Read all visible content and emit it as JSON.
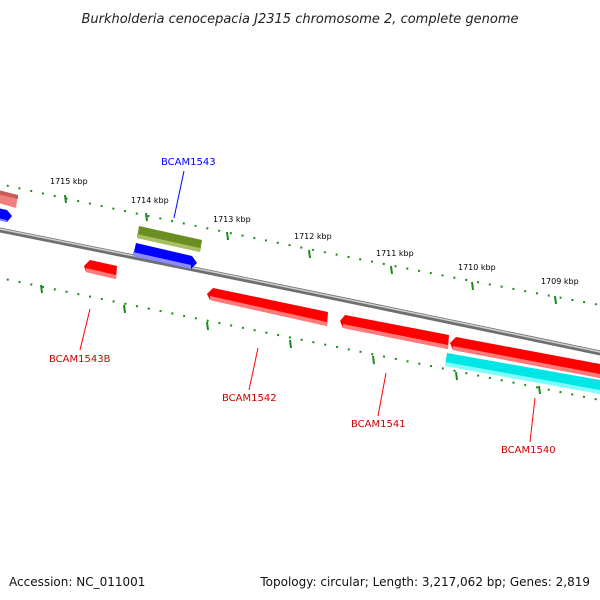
{
  "title": "Burkholderia cenocepacia J2315 chromosome 2, complete genome",
  "scale_labels": [
    "1715 kbp",
    "1714 kbp",
    "1713 kbp",
    "1712 kbp",
    "1711 kbp",
    "1710 kbp",
    "1709 kbp"
  ],
  "genes": {
    "bcam1543": {
      "label": "BCAM1543",
      "color": "#0000ff"
    },
    "bcam1543b": {
      "label": "BCAM1543B",
      "color": "#ff0000"
    },
    "bcam1542": {
      "label": "BCAM1542",
      "color": "#ff0000"
    },
    "bcam1541": {
      "label": "BCAM1541",
      "color": "#ff0000"
    },
    "bcam1540": {
      "label": "BCAM1540",
      "color": "#ff0000"
    }
  },
  "footer": {
    "accession": "Accession: NC_011001",
    "summary": "Topology: circular; Length: 3,217,062 bp; Genes: 2,819"
  },
  "colors": {
    "backbone": "#808080",
    "tick": "#1a8a1a",
    "forward_gene": "#0000ff",
    "reverse_gene": "#ff0000",
    "rna_gene": "#00e5e5",
    "other_feature": "#6b8e23",
    "pseudo_gene": "#f08080"
  }
}
